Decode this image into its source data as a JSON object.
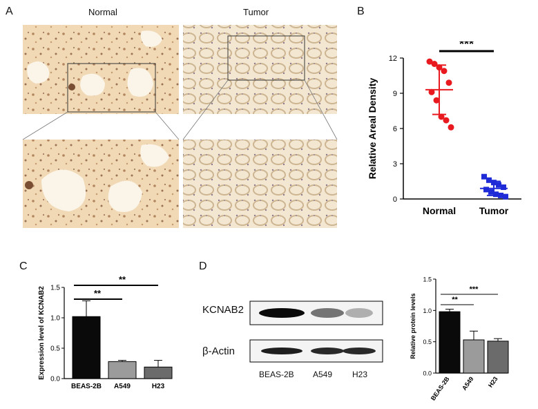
{
  "panels": {
    "a": "A",
    "b": "B",
    "c": "C",
    "d": "D"
  },
  "panel_a": {
    "col_labels": [
      "Normal",
      "Tumor"
    ],
    "colors": {
      "normal_bg": "#f1dcbb",
      "normal_tissue": "#d9b27b",
      "tumor_bg": "#f4ead9",
      "tumor_tissue": "#d8c4a3",
      "nuclei": "#8a6a58"
    }
  },
  "chart_data": [
    {
      "panel": "B",
      "type": "scatter",
      "ylabel": "Relative Areal Density",
      "categories": [
        "Normal",
        "Tumor"
      ],
      "ylim": [
        0,
        12
      ],
      "yticks": [
        0,
        3,
        6,
        9,
        12
      ],
      "significance": "***",
      "series": [
        {
          "name": "Normal",
          "color": "#e8191f",
          "marker": "circle",
          "mean": 9.3,
          "sd": 2.1,
          "points": [
            11.7,
            11.5,
            11.2,
            10.9,
            9.9,
            9.1,
            8.4,
            7.0,
            6.7,
            6.1
          ]
        },
        {
          "name": "Tumor",
          "color": "#1f2bd6",
          "marker": "square",
          "mean": 0.9,
          "sd": 0.6,
          "points": [
            1.9,
            1.6,
            1.4,
            1.2,
            1.0,
            0.8,
            0.6,
            0.4,
            0.3,
            0.2
          ]
        }
      ]
    },
    {
      "panel": "C",
      "type": "bar",
      "ylabel": "Expression level of KCNAB2",
      "categories": [
        "BEAS-2B",
        "A549",
        "H23"
      ],
      "values": [
        1.02,
        0.28,
        0.19
      ],
      "errors": [
        0.26,
        0.02,
        0.11
      ],
      "colors": [
        "#0a0a0a",
        "#9b9b9b",
        "#6b6b6b"
      ],
      "ylim": [
        0,
        1.5
      ],
      "yticks": [
        "0.0",
        "0.5",
        "1.0",
        "1.5"
      ],
      "comparisons": [
        {
          "from": 0,
          "to": 1,
          "label": "**"
        },
        {
          "from": 0,
          "to": 2,
          "label": "**"
        }
      ]
    },
    {
      "panel": "D",
      "type": "bar",
      "ylabel": "Relative protein levels",
      "categories": [
        "BEAS-2B",
        "A549",
        "H23"
      ],
      "values": [
        0.98,
        0.53,
        0.51
      ],
      "errors": [
        0.04,
        0.14,
        0.04
      ],
      "colors": [
        "#0a0a0a",
        "#9b9b9b",
        "#6b6b6b"
      ],
      "ylim": [
        0,
        1.5
      ],
      "yticks": [
        "0.0",
        "0.5",
        "1.0",
        "1.5"
      ],
      "comparisons": [
        {
          "from": 0,
          "to": 1,
          "label": "**"
        },
        {
          "from": 0,
          "to": 2,
          "label": "***"
        }
      ]
    }
  ],
  "blot": {
    "rows": [
      "KCNAB2",
      "β-Actin"
    ],
    "lanes": [
      "BEAS-2B",
      "A549",
      "H23"
    ],
    "kcnab2_intensity": [
      1.0,
      0.55,
      0.3
    ],
    "actin_intensity": [
      1.0,
      0.95,
      0.95
    ]
  }
}
